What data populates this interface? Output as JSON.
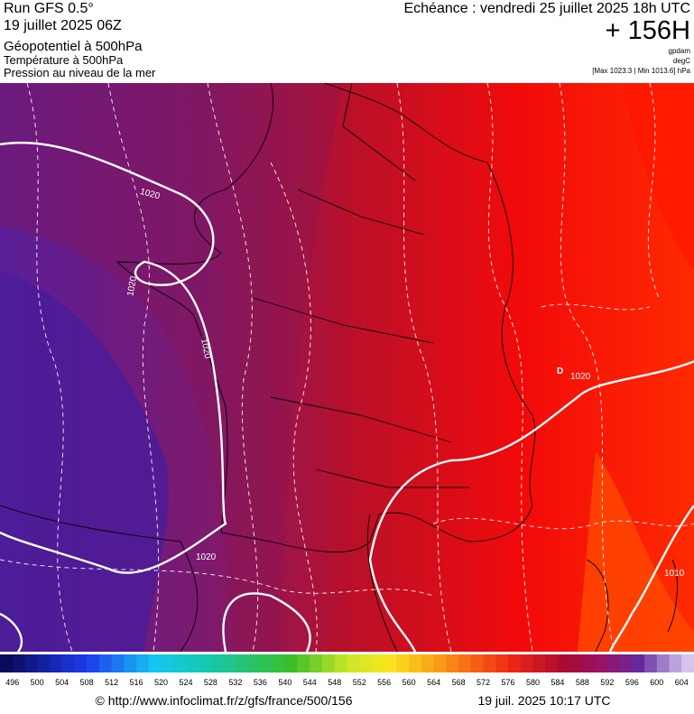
{
  "header": {
    "run": "Run GFS 0.5°",
    "date": "19 juillet 2025 06Z",
    "fields": [
      "Géopotentiel à 500hPa",
      "Température à 500hPa",
      "Pression au niveau de la mer"
    ],
    "echeance": "Echéance : vendredi 25 juillet 2025 18h UTC",
    "lead": "+ 156H",
    "units": [
      "gpdam",
      "degC",
      "[Max 1023.3 | Min 1013.6] hPa"
    ]
  },
  "map": {
    "labels": [
      "1020",
      "1020",
      "1020",
      "1020",
      "1020",
      "1010",
      "D"
    ]
  },
  "colorbar": {
    "ticks": [
      496,
      500,
      504,
      508,
      512,
      516,
      520,
      524,
      528,
      532,
      536,
      540,
      544,
      548,
      552,
      556,
      560,
      564,
      568,
      572,
      576,
      580,
      584,
      588,
      592,
      596,
      600,
      604
    ]
  },
  "footer": {
    "source": "© http://www.infoclimat.fr/z/gfs/france/500/156",
    "timestamp": "19 juil. 2025 10:17 UTC"
  }
}
